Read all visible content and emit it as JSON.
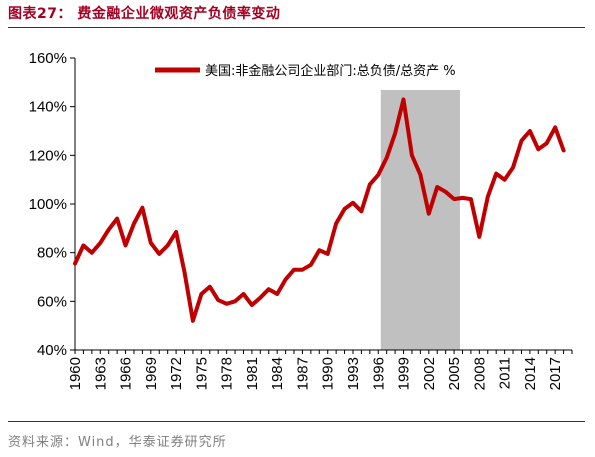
{
  "figure": {
    "title": "图表27： 费金融企业微观资产负债率变动",
    "source": "资料来源：Wind，华泰证券研究所"
  },
  "chart_data": {
    "type": "line",
    "title": "",
    "xlabel": "",
    "ylabel": "",
    "x_ticks": [
      "1960",
      "1963",
      "1966",
      "1969",
      "1972",
      "1975",
      "1978",
      "1981",
      "1984",
      "1987",
      "1990",
      "1993",
      "1996",
      "1999",
      "2002",
      "2005",
      "2008",
      "2011",
      "2014",
      "2017"
    ],
    "y_ticks": [
      "40%",
      "60%",
      "80%",
      "100%",
      "120%",
      "140%",
      "160%"
    ],
    "xlim": [
      1960,
      2019
    ],
    "ylim": [
      40,
      160
    ],
    "grid": false,
    "legend_position": "top",
    "highlight_band": {
      "x_start": 1996.3,
      "x_end": 2005.7,
      "color": "#c0c0c0"
    },
    "series": [
      {
        "name": "美国:非金融公司企业部门:总负债/总资产 %",
        "color": "#c00000",
        "x": [
          1960,
          1961,
          1962,
          1963,
          1964,
          1965,
          1966,
          1967,
          1968,
          1969,
          1970,
          1971,
          1972,
          1973,
          1974,
          1975,
          1976,
          1977,
          1978,
          1979,
          1980,
          1981,
          1982,
          1983,
          1984,
          1985,
          1986,
          1987,
          1988,
          1989,
          1990,
          1991,
          1992,
          1993,
          1994,
          1995,
          1996,
          1997,
          1998,
          1999,
          2000,
          2001,
          2002,
          2003,
          2004,
          2005,
          2006,
          2007,
          2008,
          2009,
          2010,
          2011,
          2012,
          2013,
          2014,
          2015,
          2016,
          2017,
          2018
        ],
        "values": [
          75.5,
          83,
          80,
          84,
          89.5,
          94,
          83,
          92,
          98.5,
          84,
          79.5,
          83,
          88.5,
          72,
          52,
          63,
          66,
          60.5,
          59,
          60,
          63,
          58.5,
          61.5,
          65,
          63,
          69,
          73,
          73,
          75,
          81,
          79.5,
          92,
          98,
          100.5,
          97,
          108,
          112,
          119,
          129,
          143,
          120,
          112,
          96,
          107,
          105,
          102,
          102.5,
          102,
          86.5,
          103,
          112.5,
          110,
          115,
          126,
          130,
          122.5,
          125,
          131.5,
          122
        ]
      }
    ]
  }
}
